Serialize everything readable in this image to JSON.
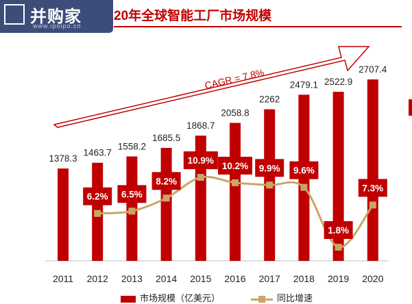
{
  "logo": {
    "text": "并购家",
    "sub": "www.ipoipo.cn"
  },
  "title": "20年全球智能工厂市场规模",
  "colors": {
    "bar": "#c00000",
    "line": "#c9a566",
    "label_box": "#c00000"
  },
  "chart_data": {
    "type": "bar",
    "categories": [
      "2011",
      "2012",
      "2013",
      "2014",
      "2015",
      "2016",
      "2017",
      "2018",
      "2019",
      "2020"
    ],
    "series": [
      {
        "name": "市场规模（亿美元）",
        "type": "bar",
        "values": [
          1378.3,
          1463.7,
          1558.2,
          1685.5,
          1868.7,
          2058.8,
          2262,
          2479.1,
          2522.9,
          2707.4
        ],
        "labels": [
          "1378.3",
          "1463.7",
          "1558.2",
          "1685.5",
          "1868.7",
          "2058.8",
          "2262",
          "2479.1",
          "2522.9",
          "2707.4"
        ]
      },
      {
        "name": "同比增速",
        "type": "line",
        "values": [
          null,
          6.2,
          6.5,
          8.2,
          10.9,
          10.2,
          9.9,
          9.6,
          1.8,
          7.3
        ],
        "labels": [
          "",
          "6.2%",
          "6.5%",
          "8.2%",
          "10.9%",
          "10.2%",
          "9.9%",
          "9.6%",
          "1.8%",
          "7.3%"
        ]
      }
    ],
    "annotation": "CAGR = 7.8%",
    "legend": "bottom"
  }
}
